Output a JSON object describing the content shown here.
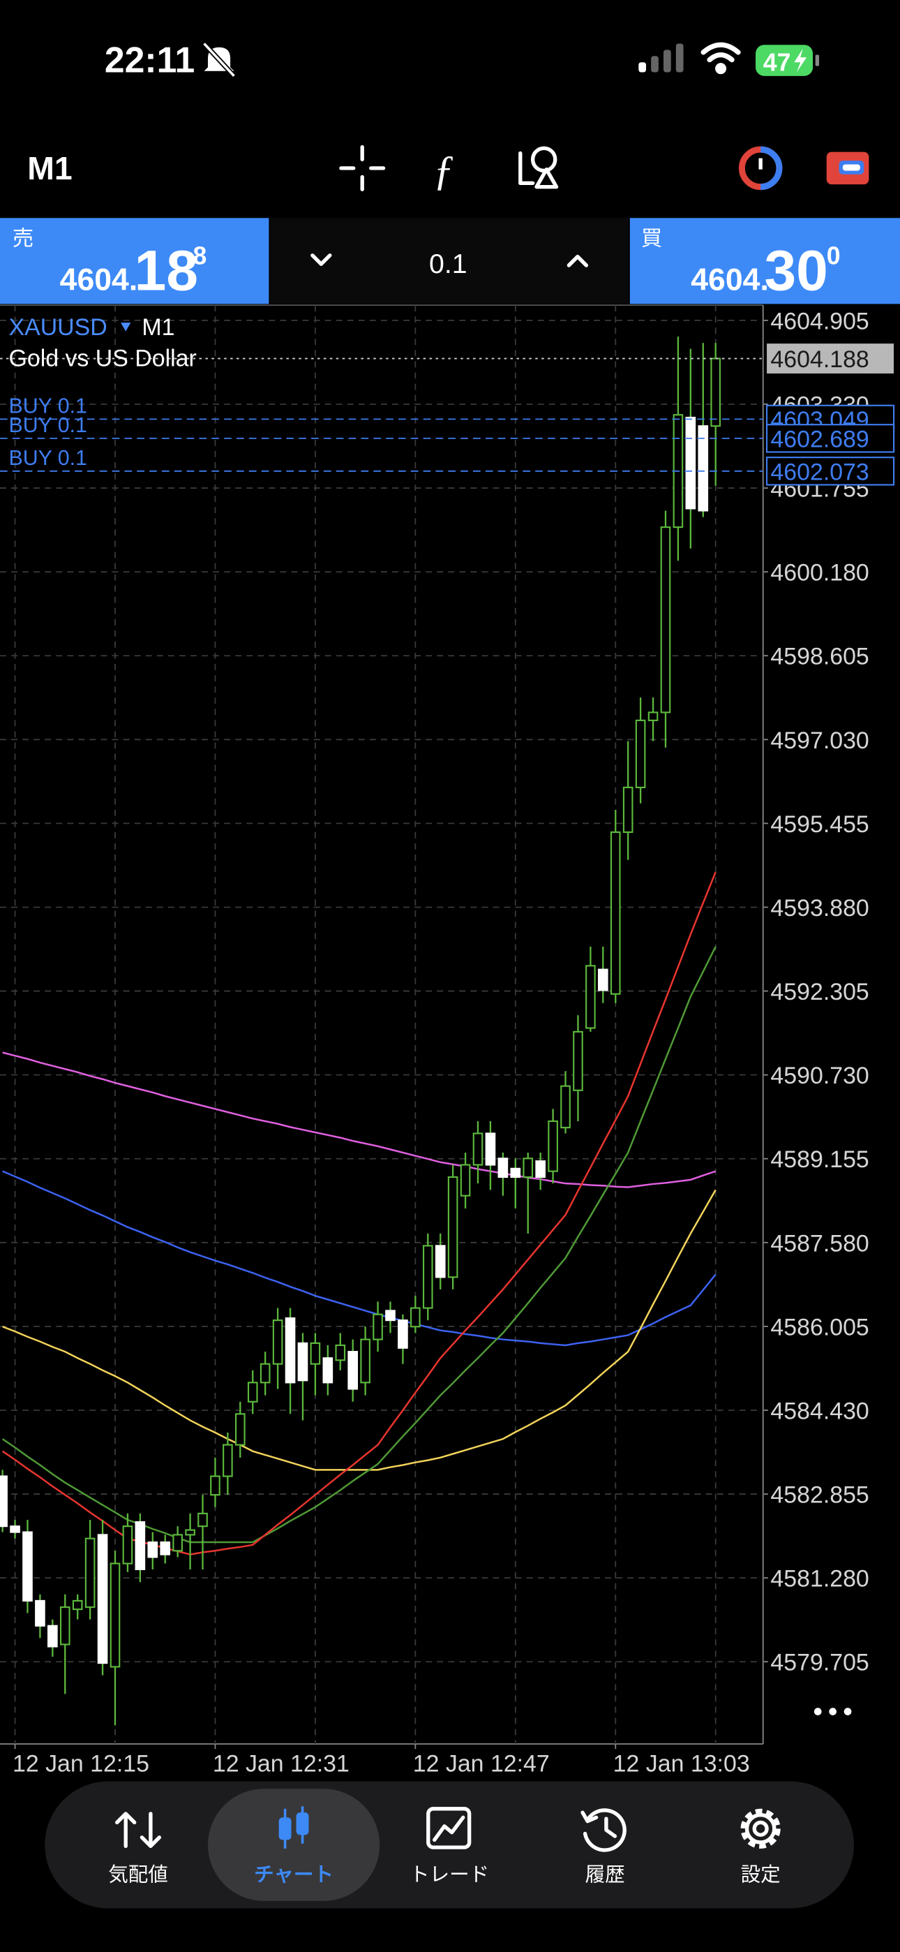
{
  "status_bar": {
    "time": "22:11",
    "battery": "47"
  },
  "toolbar": {
    "timeframe": "M1"
  },
  "quote_panel": {
    "bid": {
      "label": "売",
      "prefix": "4604.",
      "big": "18",
      "small": "8"
    },
    "volume": "0.1",
    "ask": {
      "label": "買",
      "prefix": "4604.",
      "big": "30",
      "small": "0"
    }
  },
  "chart": {
    "type": "candlestick",
    "symbol": "XAUUSD",
    "timeframe": "M1",
    "description": "Gold vs US Dollar",
    "categories": [
      null,
      "12 Jan 12:15",
      null,
      null,
      null,
      null,
      null,
      null,
      null,
      null,
      null,
      null,
      null,
      null,
      null,
      null,
      null,
      "12 Jan 12:31",
      null,
      null,
      null,
      null,
      null,
      null,
      null,
      null,
      null,
      null,
      null,
      null,
      null,
      null,
      null,
      "12 Jan 12:47",
      null,
      null,
      null,
      null,
      null,
      null,
      null,
      null,
      null,
      null,
      null,
      null,
      null,
      null,
      null,
      "12 Jan 13:03",
      null,
      null,
      null,
      null,
      null,
      null,
      null,
      null
    ],
    "open": [
      4583.19,
      4582.25,
      4582.14,
      4580.85,
      4580.38,
      4580.03,
      4580.69,
      4580.73,
      4582.09,
      4579.61,
      4581.55,
      4582.33,
      4581.95,
      4581.95,
      4581.79,
      4582.09,
      4582.25,
      4582.84,
      4583.19,
      4583.78,
      4584.59,
      4584.95,
      4585.3,
      4586.16,
      4585.69,
      4585.3,
      4585.41,
      4585.37,
      4585.53,
      4584.95,
      4585.76,
      4586.3,
      4586.12,
      4586.0,
      4586.35,
      4587.52,
      4586.93,
      4588.46,
      4589.04,
      4589.63,
      4589.16,
      4588.97,
      4588.81,
      4589.11,
      4588.92,
      4589.74,
      4590.44,
      4591.61,
      4592.71,
      4592.25,
      4595.29,
      4596.13,
      4597.39,
      4597.54,
      4601.02,
      4603.08,
      4602.92,
      4602.92
    ],
    "high": [
      4583.31,
      4582.37,
      4582.37,
      4580.97,
      4580.5,
      4580.97,
      4580.97,
      4582.37,
      4582.37,
      4581.79,
      4582.49,
      4582.49,
      4582.14,
      4582.09,
      4582.25,
      4582.49,
      4582.84,
      4583.54,
      4584.01,
      4584.59,
      4585.18,
      4585.53,
      4586.35,
      4586.35,
      4585.88,
      4585.88,
      4585.65,
      4585.88,
      4585.76,
      4586.0,
      4586.47,
      4586.47,
      4586.23,
      4586.58,
      4587.75,
      4587.75,
      4589.04,
      4589.27,
      4589.86,
      4589.86,
      4589.27,
      4589.16,
      4589.27,
      4589.27,
      4590.09,
      4590.8,
      4591.85,
      4593.14,
      4593.14,
      4595.71,
      4597.0,
      4597.82,
      4597.82,
      4601.33,
      4604.6,
      4604.37,
      4604.48,
      4604.48
    ],
    "low": [
      4582.14,
      4582.02,
      4580.62,
      4580.15,
      4579.8,
      4579.1,
      4580.5,
      4580.5,
      4579.45,
      4578.51,
      4581.39,
      4581.2,
      4581.44,
      4581.55,
      4581.67,
      4581.44,
      4581.44,
      4582.61,
      4582.84,
      4583.54,
      4584.36,
      4584.71,
      4584.83,
      4584.36,
      4584.24,
      4584.71,
      4584.71,
      4585.18,
      4584.59,
      4584.71,
      4585.53,
      4585.88,
      4585.3,
      4585.88,
      4586.12,
      4586.7,
      4586.7,
      4588.22,
      4588.69,
      4588.57,
      4588.46,
      4588.22,
      4587.75,
      4588.57,
      4588.69,
      4589.63,
      4589.86,
      4591.54,
      4592.08,
      4592.08,
      4594.77,
      4595.83,
      4597.0,
      4596.88,
      4600.39,
      4600.62,
      4601.21,
      4601.8
    ],
    "close": [
      4582.25,
      4582.14,
      4580.85,
      4580.38,
      4579.99,
      4580.73,
      4580.85,
      4582.02,
      4579.68,
      4581.55,
      4582.25,
      4581.44,
      4581.67,
      4581.72,
      4582.09,
      4582.18,
      4582.49,
      4583.19,
      4583.78,
      4584.36,
      4584.95,
      4585.3,
      4586.12,
      4584.95,
      4584.99,
      4585.69,
      4584.95,
      4585.65,
      4584.83,
      4585.76,
      4586.23,
      4586.12,
      4585.6,
      4586.35,
      4587.52,
      4586.93,
      4588.81,
      4589.04,
      4589.63,
      4589.04,
      4588.81,
      4588.81,
      4589.16,
      4588.81,
      4589.86,
      4590.52,
      4591.54,
      4592.78,
      4592.32,
      4595.29,
      4596.13,
      4597.39,
      4597.54,
      4601.02,
      4603.13,
      4601.37,
      4601.33,
      4604.188
    ],
    "up_color": "#5cb83c",
    "down_color": "#ffffff",
    "indicators": [
      {
        "color": "#e060e0",
        "values": [
          4591.15,
          4591.09,
          4591.03,
          4590.96,
          4590.9,
          4590.84,
          4590.78,
          4590.71,
          4590.65,
          4590.58,
          4590.52,
          4590.46,
          4590.4,
          4590.33,
          4590.27,
          4590.21,
          4590.15,
          4590.09,
          4590.03,
          4589.97,
          4589.91,
          4589.86,
          4589.81,
          4589.75,
          4589.7,
          4589.65,
          4589.6,
          4589.55,
          4589.49,
          4589.44,
          4589.39,
          4589.33,
          4589.27,
          4589.21,
          4589.15,
          4589.09,
          4589.05,
          4589.01,
          4588.96,
          4588.92,
          4588.88,
          4588.84,
          4588.8,
          4588.77,
          4588.73,
          4588.69,
          4588.68,
          4588.66,
          4588.65,
          4588.63,
          4588.62,
          4588.65,
          4588.68,
          4588.7,
          4588.73,
          4588.76,
          4588.84,
          4588.92
        ]
      },
      {
        "color": "#3d63f2",
        "values": [
          4588.92,
          4588.82,
          4588.72,
          4588.61,
          4588.51,
          4588.41,
          4588.3,
          4588.19,
          4588.09,
          4587.98,
          4587.87,
          4587.78,
          4587.68,
          4587.59,
          4587.49,
          4587.4,
          4587.32,
          4587.24,
          4587.17,
          4587.09,
          4587.01,
          4586.92,
          4586.84,
          4586.75,
          4586.67,
          4586.58,
          4586.51,
          4586.44,
          4586.37,
          4586.3,
          4586.23,
          4586.17,
          4586.11,
          4586.05,
          4585.99,
          4585.93,
          4585.9,
          4585.86,
          4585.83,
          4585.79,
          4585.76,
          4585.74,
          4585.72,
          4585.69,
          4585.67,
          4585.65,
          4585.69,
          4585.72,
          4585.76,
          4585.8,
          4585.84,
          4585.95,
          4586.06,
          4586.18,
          4586.29,
          4586.4,
          4586.69,
          4586.98
        ]
      },
      {
        "color": "#f2d35a",
        "values": [
          4586.0,
          4585.91,
          4585.81,
          4585.72,
          4585.62,
          4585.53,
          4585.41,
          4585.3,
          4585.18,
          4585.07,
          4584.95,
          4584.81,
          4584.67,
          4584.52,
          4584.38,
          4584.24,
          4584.12,
          4584.01,
          4583.89,
          4583.78,
          4583.66,
          4583.59,
          4583.52,
          4583.45,
          4583.38,
          4583.31,
          4583.31,
          4583.31,
          4583.31,
          4583.31,
          4583.31,
          4583.36,
          4583.4,
          4583.45,
          4583.49,
          4583.54,
          4583.61,
          4583.68,
          4583.75,
          4583.82,
          4583.89,
          4584.02,
          4584.14,
          4584.27,
          4584.39,
          4584.52,
          4584.72,
          4584.92,
          4585.13,
          4585.33,
          4585.53,
          4585.97,
          4586.42,
          4586.86,
          4587.31,
          4587.75,
          4588.16,
          4588.57
        ]
      },
      {
        "color": "#4f9a36",
        "values": [
          4583.89,
          4583.73,
          4583.56,
          4583.4,
          4583.23,
          4583.07,
          4582.93,
          4582.79,
          4582.65,
          4582.51,
          4582.37,
          4582.29,
          4582.2,
          4582.12,
          4582.03,
          4581.95,
          4581.95,
          4581.95,
          4581.95,
          4581.95,
          4581.95,
          4582.08,
          4582.21,
          4582.35,
          4582.48,
          4582.61,
          4582.77,
          4582.93,
          4583.1,
          4583.26,
          4583.42,
          4583.68,
          4583.94,
          4584.19,
          4584.45,
          4584.71,
          4584.94,
          4585.18,
          4585.41,
          4585.65,
          4585.88,
          4586.16,
          4586.44,
          4586.73,
          4587.01,
          4587.29,
          4587.69,
          4588.08,
          4588.48,
          4588.87,
          4589.27,
          4589.86,
          4590.44,
          4591.03,
          4591.61,
          4592.2,
          4592.67,
          4593.14
        ]
      },
      {
        "color": "#e8352f",
        "values": [
          4583.66,
          4583.5,
          4583.33,
          4583.17,
          4583.0,
          4582.84,
          4582.68,
          4582.51,
          4582.35,
          4582.18,
          4582.02,
          4581.96,
          4581.9,
          4581.84,
          4581.78,
          4581.72,
          4581.76,
          4581.79,
          4581.83,
          4581.86,
          4581.9,
          4582.09,
          4582.28,
          4582.46,
          4582.65,
          4582.84,
          4583.03,
          4583.22,
          4583.4,
          4583.59,
          4583.78,
          4584.11,
          4584.43,
          4584.76,
          4585.08,
          4585.41,
          4585.67,
          4585.93,
          4586.18,
          4586.44,
          4586.7,
          4586.98,
          4587.26,
          4587.54,
          4587.82,
          4588.1,
          4588.55,
          4588.99,
          4589.44,
          4589.88,
          4590.33,
          4590.94,
          4591.55,
          4592.15,
          4592.76,
          4593.37,
          4593.96,
          4594.54
        ]
      }
    ],
    "current_price": 4604.188,
    "orders": [
      {
        "label": "BUY 0.1",
        "price": 4603.049
      },
      {
        "label": "BUY 0.1",
        "price": 4602.689
      },
      {
        "label": "BUY 0.1",
        "price": 4602.073
      }
    ],
    "order_color": "#3f7df0",
    "ylim": [
      4578.16,
      4605.19
    ],
    "yticks": [
      4604.905,
      {
        "value": 4603.33,
        "label": "4603.330"
      },
      4601.755,
      {
        "value": 4600.18,
        "label": "4600.180"
      },
      4598.605,
      {
        "value": 4597.03,
        "label": "4597.030"
      },
      4595.455,
      {
        "value": 4593.88,
        "label": "4593.880"
      },
      4592.305,
      {
        "value": 4590.73,
        "label": "4590.730"
      },
      4589.155,
      {
        "value": 4587.58,
        "label": "4587.580"
      },
      4586.005,
      {
        "value": 4584.43,
        "label": "4584.430"
      },
      4582.855,
      {
        "value": 4581.28,
        "label": "4581.280"
      },
      4579.705
    ],
    "grid": true
  },
  "tab_bar": {
    "tabs": [
      "気配値",
      "チャート",
      "トレード",
      "履歴",
      "設定"
    ]
  }
}
